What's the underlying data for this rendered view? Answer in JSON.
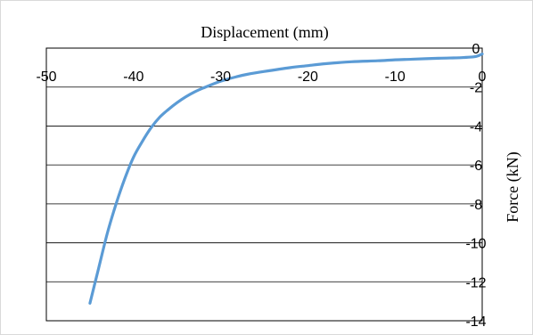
{
  "chart_data": {
    "type": "line",
    "xlabel": "Displacement (mm)",
    "ylabel": "Force (kN)",
    "xlim": [
      -50,
      0
    ],
    "ylim": [
      -14,
      0
    ],
    "x_ticks": [
      -50,
      -40,
      -30,
      -20,
      -10,
      0
    ],
    "y_ticks": [
      0,
      -2,
      -4,
      -6,
      -8,
      -10,
      -12,
      -14
    ],
    "x_tick_labels": [
      "-50",
      "-40",
      "-30",
      "-20",
      "-10",
      "0"
    ],
    "y_tick_labels": [
      "0",
      "-2",
      "-4",
      "-6",
      "-8",
      "-10",
      "-12",
      "-14"
    ],
    "x_axis_position": "top",
    "y_axis_position": "right",
    "grid": {
      "horizontal": true,
      "vertical": false
    },
    "legend": "none",
    "colors": {
      "series": "#5b9bd5"
    },
    "series": [
      {
        "x": [
          0,
          -0.5,
          -1,
          -2,
          -3,
          -5,
          -8,
          -10,
          -12,
          -15,
          -18,
          -20,
          -22,
          -25,
          -27,
          -28,
          -30,
          -32,
          -33,
          -34,
          -35,
          -36,
          -37,
          -38,
          -39,
          -40,
          -41,
          -42,
          -43,
          -44,
          -45
        ],
        "values": [
          -0.3,
          -0.4,
          -0.45,
          -0.48,
          -0.5,
          -0.52,
          -0.57,
          -0.6,
          -0.65,
          -0.7,
          -0.8,
          -0.9,
          -1.0,
          -1.2,
          -1.35,
          -1.45,
          -1.7,
          -2.05,
          -2.25,
          -2.5,
          -2.8,
          -3.15,
          -3.55,
          -4.1,
          -4.8,
          -5.6,
          -6.7,
          -8.0,
          -9.5,
          -11.3,
          -13.1
        ]
      }
    ]
  }
}
